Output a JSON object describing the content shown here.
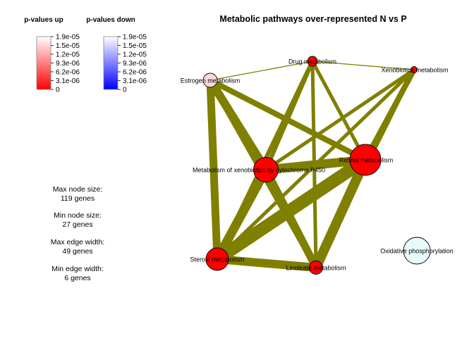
{
  "title": "Metabolic pathways over-represented N vs P",
  "legend_up": {
    "title": "p-values up",
    "ticks": [
      "1.9e-05",
      "1.5e-05",
      "1.2e-05",
      "9.3e-06",
      "6.2e-06",
      "3.1e-06",
      "0"
    ],
    "colors": {
      "top": "#ffffff",
      "bottom": "#ff0000"
    }
  },
  "legend_down": {
    "title": "p-values down",
    "ticks": [
      "1.9e-05",
      "1.5e-05",
      "1.2e-05",
      "9.3e-06",
      "6.2e-06",
      "3.1e-06",
      "0"
    ],
    "colors": {
      "top": "#ffffff",
      "bottom": "#0000ff"
    }
  },
  "stats": {
    "max_node_label": "Max node size:",
    "max_node_value": "119 genes",
    "min_node_label": "Min node size:",
    "min_node_value": "27 genes",
    "max_edge_label": "Max edge width:",
    "max_edge_value": "49 genes",
    "min_edge_label": "Min edge width:",
    "min_edge_value": "6 genes"
  },
  "edge_color": "#7f7f00",
  "nodes": [
    {
      "id": "drug",
      "label": "Drug metabolism",
      "fill": "#ff0000"
    },
    {
      "id": "xeno",
      "label": "Xenobiotics metabolism",
      "fill": "#ff0000"
    },
    {
      "id": "estrogen",
      "label": "Estrogen metabolism",
      "fill": "#fcd9d9"
    },
    {
      "id": "retinol",
      "label": "Retinol metabolism",
      "fill": "#ff0000"
    },
    {
      "id": "p450",
      "label": "Metabolism of xenobiotics by cytochrome P450",
      "fill": "#ff0000"
    },
    {
      "id": "steroid",
      "label": "Steroid metabolism",
      "fill": "#ff0000"
    },
    {
      "id": "linoleate",
      "label": "Linoleate metabolism",
      "fill": "#ff0000"
    },
    {
      "id": "oxphos",
      "label": "Oxidative phosphorylation",
      "fill": "#e8fafa"
    }
  ],
  "edges": [
    {
      "source": "estrogen",
      "target": "drug"
    },
    {
      "source": "drug",
      "target": "xeno"
    },
    {
      "source": "estrogen",
      "target": "p450"
    },
    {
      "source": "estrogen",
      "target": "retinol"
    },
    {
      "source": "estrogen",
      "target": "steroid"
    },
    {
      "source": "estrogen",
      "target": "linoleate"
    },
    {
      "source": "drug",
      "target": "p450"
    },
    {
      "source": "drug",
      "target": "retinol"
    },
    {
      "source": "drug",
      "target": "steroid"
    },
    {
      "source": "drug",
      "target": "linoleate"
    },
    {
      "source": "xeno",
      "target": "p450"
    },
    {
      "source": "xeno",
      "target": "retinol"
    },
    {
      "source": "xeno",
      "target": "steroid"
    },
    {
      "source": "xeno",
      "target": "linoleate"
    },
    {
      "source": "p450",
      "target": "retinol"
    },
    {
      "source": "p450",
      "target": "steroid"
    },
    {
      "source": "p450",
      "target": "linoleate"
    },
    {
      "source": "retinol",
      "target": "steroid"
    },
    {
      "source": "retinol",
      "target": "linoleate"
    },
    {
      "source": "steroid",
      "target": "linoleate"
    }
  ]
}
